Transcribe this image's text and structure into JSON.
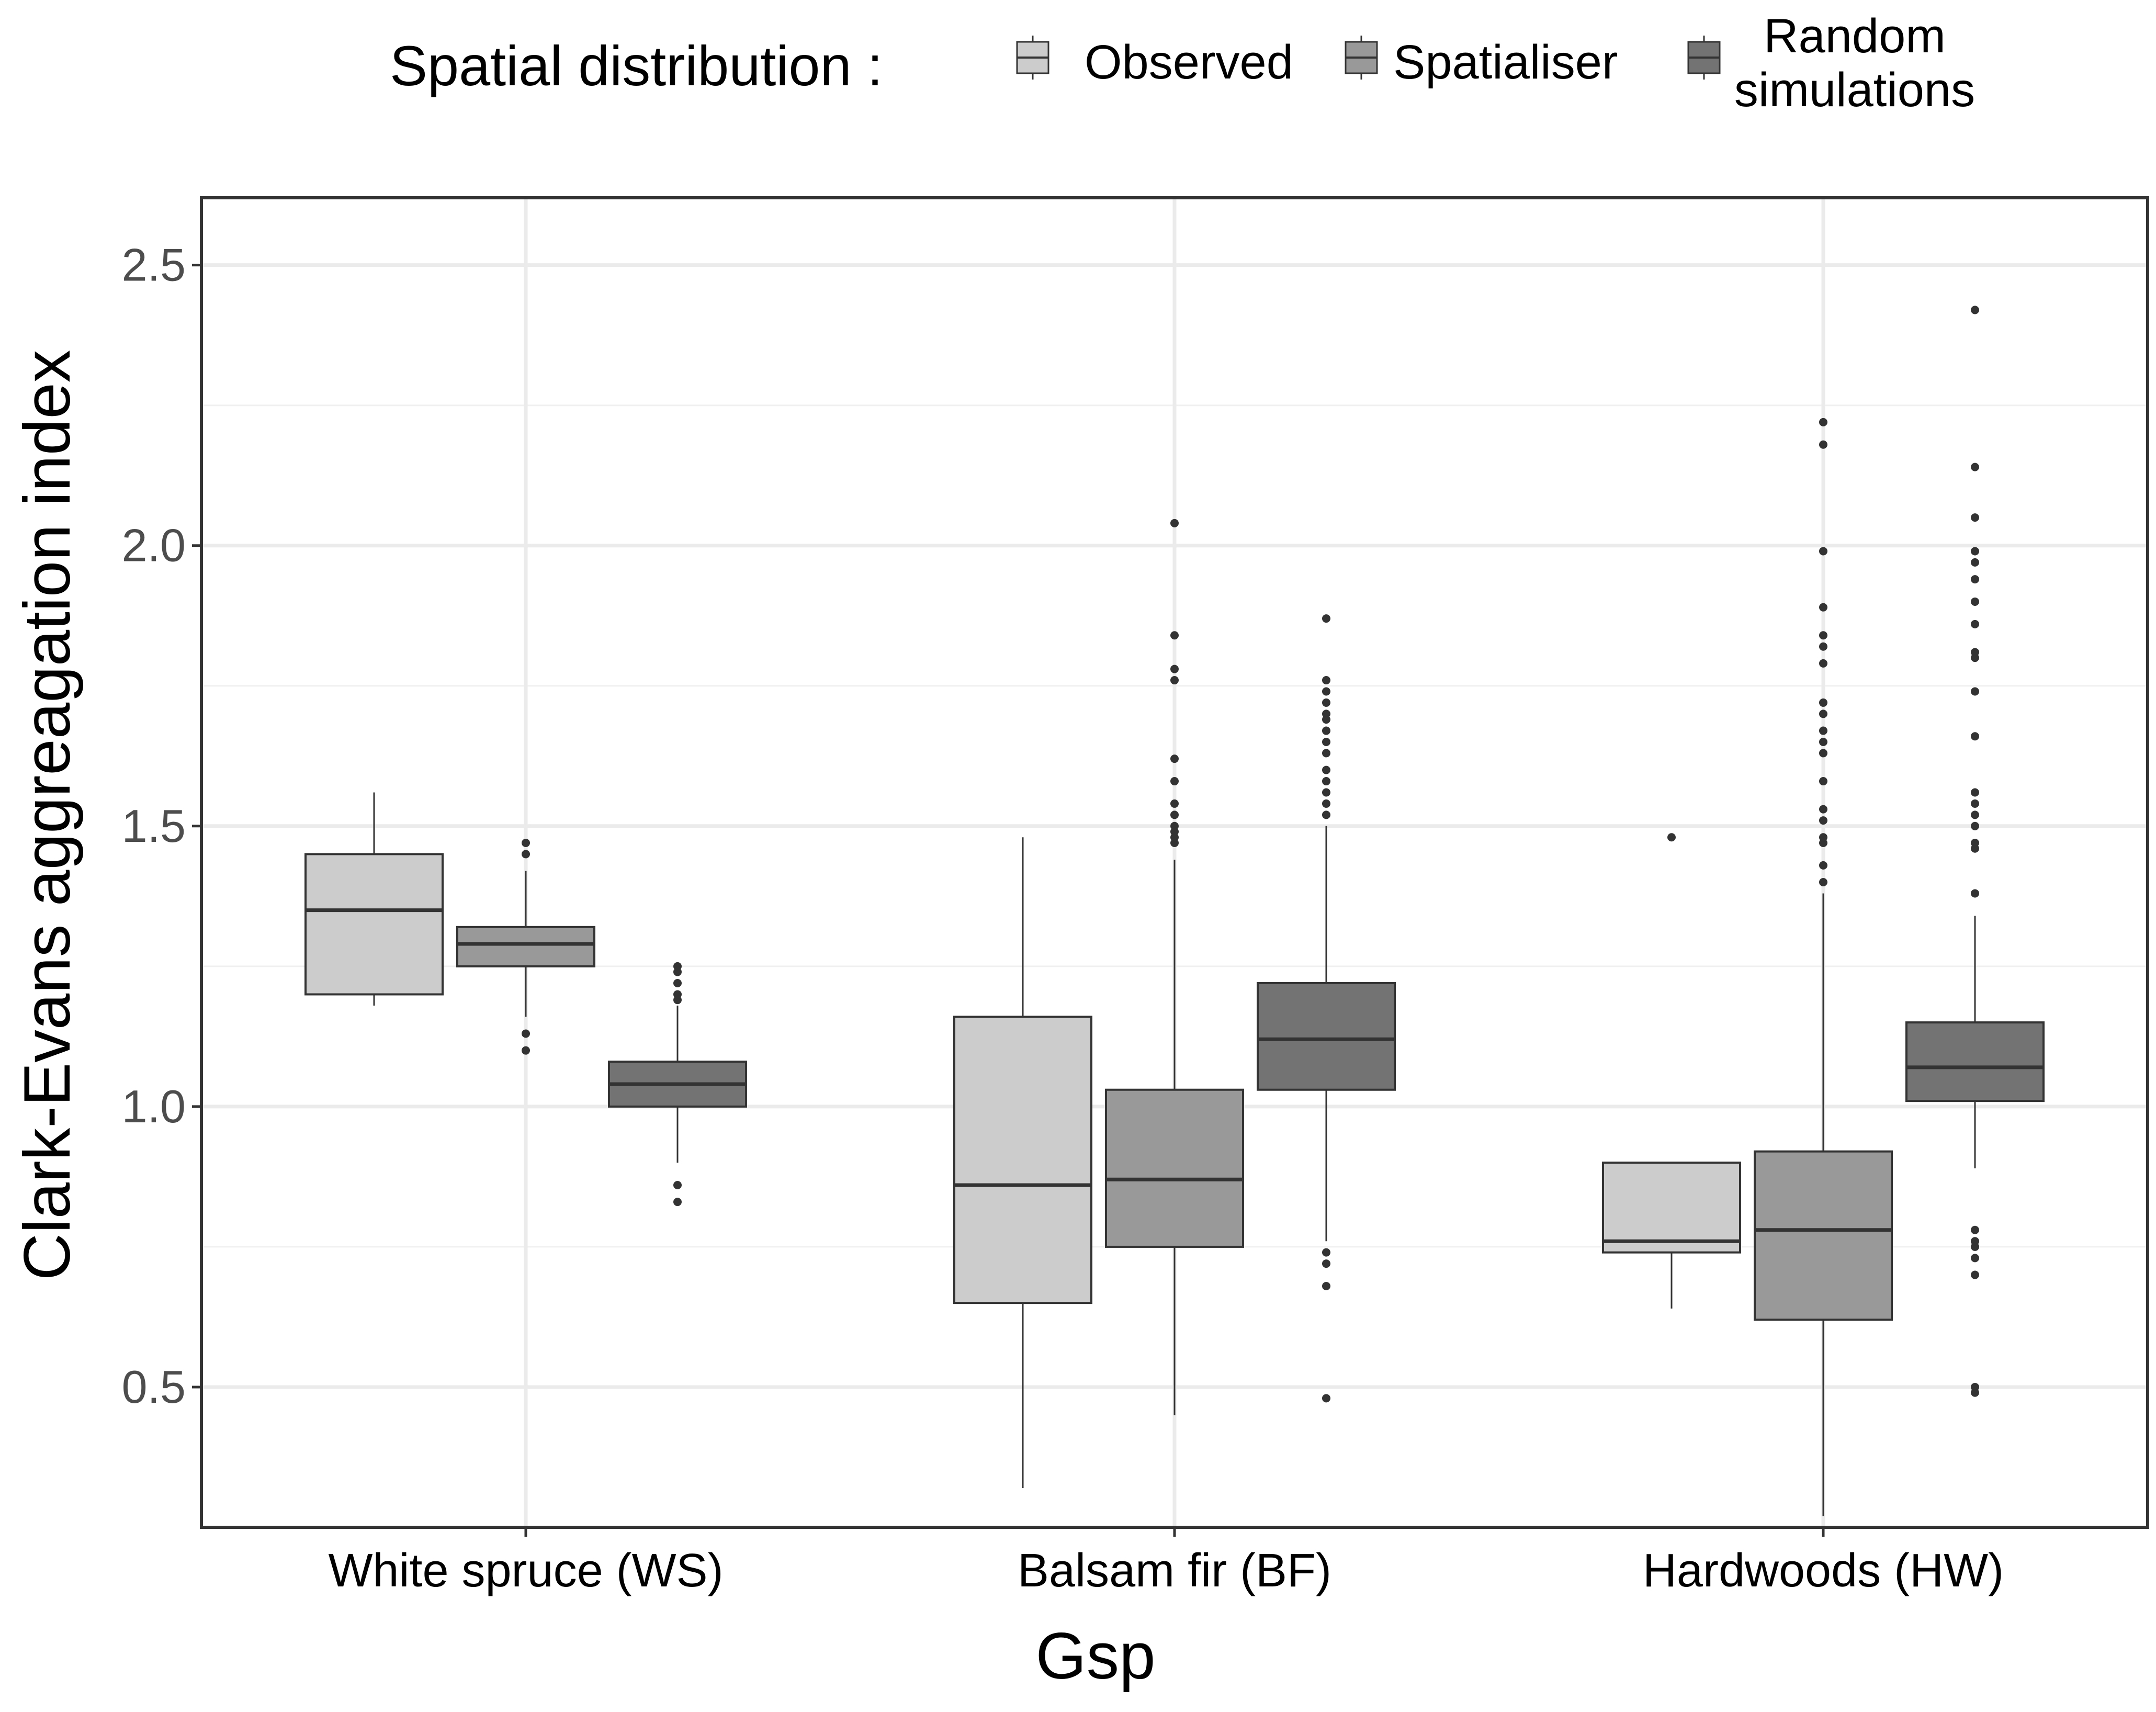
{
  "chart_data": {
    "type": "boxplot",
    "title": "",
    "xlabel": "Gsp",
    "ylabel": "Clark-Evans aggreagation index",
    "ylim": [
      0.25,
      2.62
    ],
    "yticks": [
      0.5,
      1.0,
      1.5,
      2.0,
      2.5
    ],
    "ytick_labels": [
      "0.5",
      "1.0",
      "1.5",
      "2.0",
      "2.5"
    ],
    "grid": true,
    "legend": {
      "title": "Spatial distribution :",
      "position": "top",
      "entries": [
        {
          "name": "Observed",
          "lines": [
            "Observed"
          ]
        },
        {
          "name": "Spatialiser",
          "lines": [
            "Spatialiser"
          ]
        },
        {
          "name": "Random simulations",
          "lines": [
            "Random",
            "simulations"
          ]
        }
      ]
    },
    "categories": [
      "White spruce (WS)",
      "Balsam fir (BF)",
      "Hardwoods (HW)"
    ],
    "series": [
      {
        "name": "Observed",
        "color": "#cccccc",
        "boxes": [
          {
            "whisker_low": 1.18,
            "q1": 1.2,
            "median": 1.35,
            "q3": 1.45,
            "whisker_high": 1.56,
            "outliers": []
          },
          {
            "whisker_low": 0.32,
            "q1": 0.65,
            "median": 0.86,
            "q3": 1.16,
            "whisker_high": 1.48,
            "outliers": []
          },
          {
            "whisker_low": 0.64,
            "q1": 0.74,
            "median": 0.76,
            "q3": 0.9,
            "whisker_high": 0.9,
            "outliers": [
              1.48
            ]
          }
        ]
      },
      {
        "name": "Spatialiser",
        "color": "#999999",
        "boxes": [
          {
            "whisker_low": 1.16,
            "q1": 1.25,
            "median": 1.29,
            "q3": 1.32,
            "whisker_high": 1.42,
            "outliers": [
              1.1,
              1.13,
              1.45,
              1.47
            ]
          },
          {
            "whisker_low": 0.45,
            "q1": 0.75,
            "median": 0.87,
            "q3": 1.03,
            "whisker_high": 1.44,
            "outliers": [
              1.47,
              1.48,
              1.49,
              1.5,
              1.52,
              1.54,
              1.58,
              1.62,
              1.76,
              1.78,
              1.84,
              2.04
            ]
          },
          {
            "whisker_low": 0.27,
            "q1": 0.62,
            "median": 0.78,
            "q3": 0.92,
            "whisker_high": 1.38,
            "outliers": [
              1.4,
              1.43,
              1.47,
              1.48,
              1.51,
              1.53,
              1.58,
              1.63,
              1.65,
              1.67,
              1.7,
              1.72,
              1.79,
              1.82,
              1.84,
              1.89,
              1.99,
              2.18,
              2.22
            ]
          }
        ]
      },
      {
        "name": "Random simulations",
        "color": "#737373",
        "boxes": [
          {
            "whisker_low": 0.9,
            "q1": 1.0,
            "median": 1.04,
            "q3": 1.08,
            "whisker_high": 1.18,
            "outliers": [
              0.83,
              0.86,
              1.19,
              1.2,
              1.22,
              1.24,
              1.25
            ]
          },
          {
            "whisker_low": 0.76,
            "q1": 1.03,
            "median": 1.12,
            "q3": 1.22,
            "whisker_high": 1.5,
            "outliers": [
              0.48,
              0.68,
              0.72,
              0.74,
              1.52,
              1.54,
              1.56,
              1.58,
              1.6,
              1.63,
              1.65,
              1.67,
              1.69,
              1.7,
              1.72,
              1.74,
              1.76,
              1.87
            ]
          },
          {
            "whisker_low": 0.89,
            "q1": 1.01,
            "median": 1.07,
            "q3": 1.15,
            "whisker_high": 1.34,
            "outliers": [
              0.49,
              0.5,
              0.7,
              0.73,
              0.75,
              0.76,
              0.78,
              1.38,
              1.46,
              1.47,
              1.5,
              1.52,
              1.54,
              1.56,
              1.66,
              1.74,
              1.8,
              1.81,
              1.86,
              1.9,
              1.94,
              1.97,
              1.99,
              2.05,
              2.14,
              2.42
            ]
          }
        ]
      }
    ]
  }
}
